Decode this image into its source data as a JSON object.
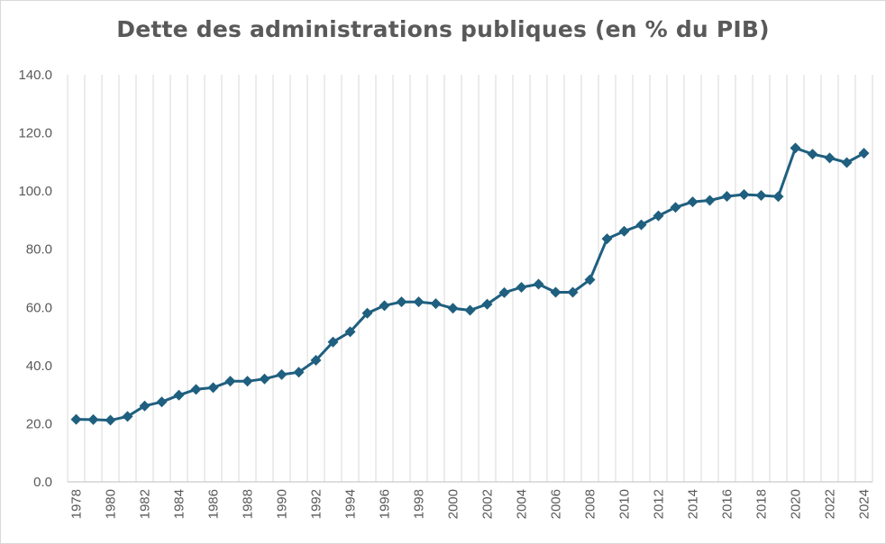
{
  "chart_data": {
    "type": "line",
    "title": "Dette des administrations publiques (en % du PIB)",
    "xlabel": "",
    "ylabel": "",
    "ylim": [
      0,
      140
    ],
    "y_ticks": [
      "0.0",
      "20.0",
      "40.0",
      "60.0",
      "80.0",
      "100.0",
      "120.0",
      "140.0"
    ],
    "x_tick_labels": [
      "1978",
      "1980",
      "1982",
      "1984",
      "1986",
      "1988",
      "1990",
      "1992",
      "1994",
      "1996",
      "1998",
      "2000",
      "2002",
      "2004",
      "2006",
      "2008",
      "2010",
      "2012",
      "2014",
      "2016",
      "2018",
      "2020",
      "2022",
      "2024"
    ],
    "grid": "vertical",
    "marker": "diamond",
    "color": "#1f5f7f",
    "x": [
      1978,
      1979,
      1980,
      1981,
      1982,
      1983,
      1984,
      1985,
      1986,
      1987,
      1988,
      1989,
      1990,
      1991,
      1992,
      1993,
      1994,
      1995,
      1996,
      1997,
      1998,
      1999,
      2000,
      2001,
      2002,
      2003,
      2004,
      2005,
      2006,
      2007,
      2008,
      2009,
      2010,
      2011,
      2012,
      2013,
      2014,
      2015,
      2016,
      2017,
      2018,
      2019,
      2020,
      2021,
      2022,
      2023,
      2024
    ],
    "values": [
      21.5,
      21.4,
      21.2,
      22.5,
      26.1,
      27.5,
      29.8,
      31.8,
      32.4,
      34.6,
      34.6,
      35.4,
      36.9,
      37.7,
      41.8,
      48.1,
      51.6,
      58.0,
      60.6,
      61.9,
      61.9,
      61.3,
      59.7,
      59.0,
      61.1,
      65.1,
      66.9,
      68.0,
      65.2,
      65.2,
      69.5,
      83.6,
      86.2,
      88.4,
      91.5,
      94.4,
      96.3,
      96.8,
      98.2,
      98.8,
      98.5,
      98.1,
      114.8,
      112.7,
      111.4,
      109.8,
      113.0
    ]
  }
}
